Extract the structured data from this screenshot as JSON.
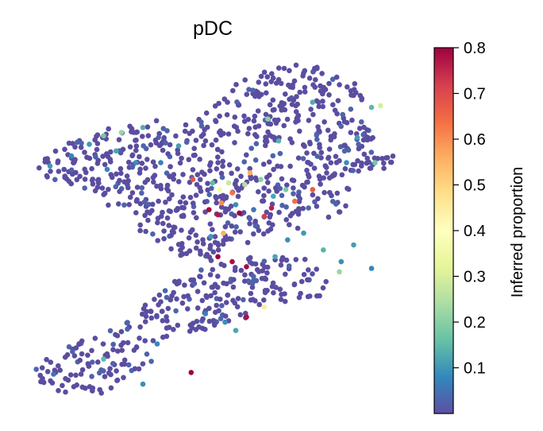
{
  "chart_data": {
    "type": "scatter",
    "title": "pDC",
    "colorbar": {
      "label": "Inferred proportion",
      "range": [
        0.0,
        0.8
      ],
      "ticks": [
        0.1,
        0.2,
        0.3,
        0.4,
        0.5,
        0.6,
        0.7,
        0.8
      ],
      "tick_labels": [
        "0.1",
        "0.2",
        "0.3",
        "0.4",
        "0.5",
        "0.6",
        "0.7",
        "0.8"
      ],
      "colormap": "Spectral_r",
      "colormap_stops": [
        "#5e4fa2",
        "#3288bd",
        "#66c2a5",
        "#abdda4",
        "#e6f598",
        "#ffffbf",
        "#fee08b",
        "#fdae61",
        "#f46d43",
        "#d53e4f",
        "#9e0142"
      ]
    },
    "axes_visible": false,
    "grid": false,
    "point_color_low": "#5b4da0",
    "background_point_count": 1050,
    "highlight_points": [
      {
        "x": -0.62,
        "y": 0.56,
        "v": 0.18
      },
      {
        "x": -0.7,
        "y": 0.51,
        "v": 0.1
      },
      {
        "x": -0.55,
        "y": 0.47,
        "v": 0.12
      },
      {
        "x": -0.6,
        "y": 0.36,
        "v": 0.08
      },
      {
        "x": -0.44,
        "y": 0.4,
        "v": 0.09
      },
      {
        "x": -0.52,
        "y": 0.58,
        "v": 0.22
      },
      {
        "x": -0.4,
        "y": 0.61,
        "v": 0.13
      },
      {
        "x": -0.2,
        "y": 0.5,
        "v": 0.11
      },
      {
        "x": -0.12,
        "y": 0.3,
        "v": 0.68
      },
      {
        "x": -0.01,
        "y": 0.28,
        "v": 0.15
      },
      {
        "x": 0.03,
        "y": 0.24,
        "v": 0.36
      },
      {
        "x": 0.08,
        "y": 0.28,
        "v": 0.28
      },
      {
        "x": 0.1,
        "y": 0.22,
        "v": 0.63
      },
      {
        "x": 0.04,
        "y": 0.16,
        "v": 0.6
      },
      {
        "x": 0.12,
        "y": 0.15,
        "v": 0.09
      },
      {
        "x": -0.03,
        "y": 0.12,
        "v": 0.79
      },
      {
        "x": 0.02,
        "y": 0.09,
        "v": 0.77
      },
      {
        "x": 0.14,
        "y": 0.1,
        "v": 0.8
      },
      {
        "x": 0.22,
        "y": 0.12,
        "v": 0.05
      },
      {
        "x": 0.28,
        "y": 0.08,
        "v": 0.72
      },
      {
        "x": 0.32,
        "y": 0.13,
        "v": 0.76
      },
      {
        "x": 0.45,
        "y": 0.17,
        "v": 0.64
      },
      {
        "x": 0.33,
        "y": 0.2,
        "v": 0.12
      },
      {
        "x": 0.4,
        "y": 0.24,
        "v": 0.18
      },
      {
        "x": 0.2,
        "y": 0.34,
        "v": 0.56
      },
      {
        "x": 0.26,
        "y": 0.3,
        "v": 0.2
      },
      {
        "x": 0.17,
        "y": 0.27,
        "v": 0.25
      },
      {
        "x": 0.55,
        "y": 0.24,
        "v": 0.67
      },
      {
        "x": 0.05,
        "y": -0.02,
        "v": 0.55
      },
      {
        "x": -0.02,
        "y": -0.04,
        "v": 0.1
      },
      {
        "x": 0.02,
        "y": -0.16,
        "v": 0.8
      },
      {
        "x": 0.1,
        "y": -0.19,
        "v": 0.78
      },
      {
        "x": 0.18,
        "y": -0.22,
        "v": 0.79
      },
      {
        "x": 0.34,
        "y": -0.16,
        "v": 0.12
      },
      {
        "x": 0.41,
        "y": -0.06,
        "v": 0.09
      },
      {
        "x": 0.5,
        "y": -0.02,
        "v": 0.1
      },
      {
        "x": 0.61,
        "y": -0.12,
        "v": 0.14
      },
      {
        "x": 0.71,
        "y": -0.19,
        "v": 0.09
      },
      {
        "x": 0.78,
        "y": -0.09,
        "v": 0.11
      },
      {
        "x": 0.88,
        "y": -0.23,
        "v": 0.08
      },
      {
        "x": 0.7,
        "y": -0.25,
        "v": 0.22
      },
      {
        "x": 0.28,
        "y": -0.46,
        "v": 0.45
      },
      {
        "x": 0.18,
        "y": -0.52,
        "v": 0.78
      },
      {
        "x": 0.06,
        "y": -0.55,
        "v": 0.09
      },
      {
        "x": 0.12,
        "y": -0.6,
        "v": 0.12
      },
      {
        "x": -0.05,
        "y": -0.5,
        "v": 0.07
      },
      {
        "x": -0.32,
        "y": -0.68,
        "v": 0.08
      },
      {
        "x": -0.62,
        "y": -0.77,
        "v": 0.15
      },
      {
        "x": -0.9,
        "y": -0.86,
        "v": 0.05
      },
      {
        "x": -0.13,
        "y": -0.85,
        "v": 0.8
      },
      {
        "x": -0.4,
        "y": -0.92,
        "v": 0.09
      },
      {
        "x": 0.55,
        "y": 0.76,
        "v": 0.13
      },
      {
        "x": 0.88,
        "y": 0.73,
        "v": 0.15
      },
      {
        "x": 0.93,
        "y": 0.74,
        "v": 0.3
      },
      {
        "x": 0.3,
        "y": 0.66,
        "v": 0.2
      },
      {
        "x": 0.8,
        "y": 0.55,
        "v": 0.11
      },
      {
        "x": 0.9,
        "y": 0.4,
        "v": 0.18
      },
      {
        "x": 0.36,
        "y": 0.53,
        "v": 0.14
      },
      {
        "x": 0.74,
        "y": 0.4,
        "v": 0.09
      },
      {
        "x": -0.8,
        "y": 0.44,
        "v": 0.08
      },
      {
        "x": -0.92,
        "y": 0.38,
        "v": 0.1
      },
      {
        "x": -0.3,
        "y": 0.4,
        "v": 0.07
      }
    ]
  }
}
